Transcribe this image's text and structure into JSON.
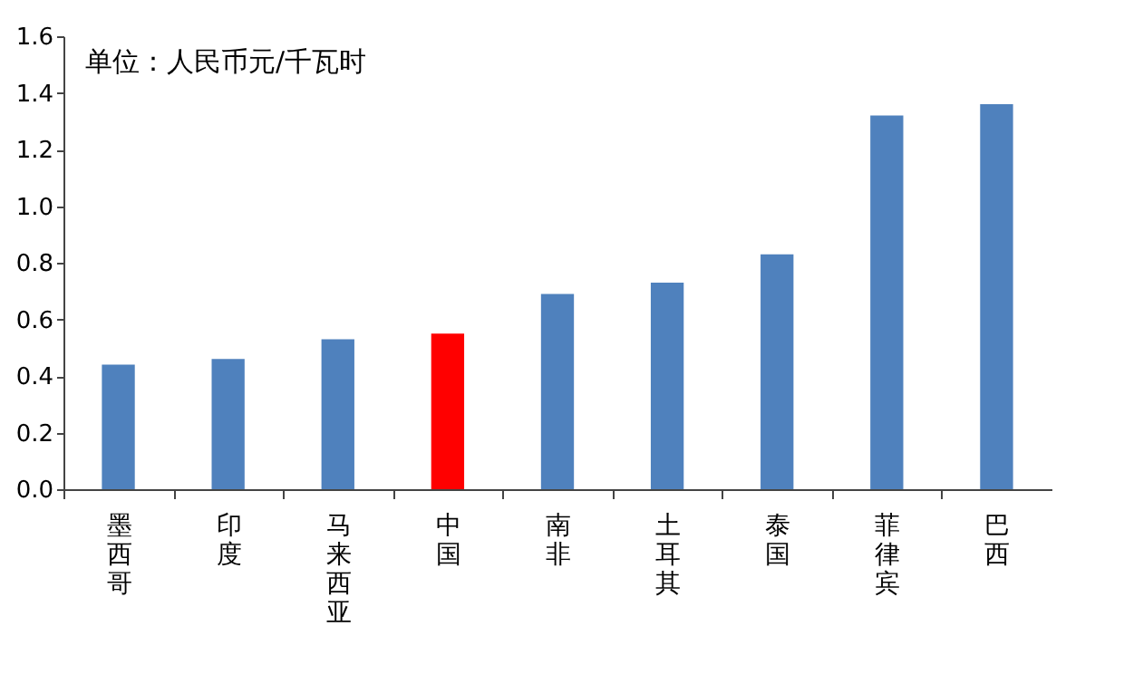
{
  "chart_data": {
    "type": "bar",
    "ylabel": "单位：人民币元/千瓦时",
    "categories": [
      "墨西哥",
      "印度",
      "马来西亚",
      "中国",
      "南非",
      "土耳其",
      "泰国",
      "菲律宾",
      "巴西"
    ],
    "values": [
      0.44,
      0.46,
      0.53,
      0.55,
      0.69,
      0.73,
      0.83,
      1.32,
      1.36
    ],
    "colors": [
      "#4f81bd",
      "#4f81bd",
      "#4f81bd",
      "#ff0000",
      "#4f81bd",
      "#4f81bd",
      "#4f81bd",
      "#4f81bd",
      "#4f81bd"
    ],
    "ylim": [
      0,
      1.6
    ],
    "yticks": [
      {
        "value": 0,
        "label": "0.0"
      },
      0.2,
      0.4,
      0.6,
      0.8,
      {
        "value": 1,
        "label": "1.0"
      },
      1.2,
      1.4,
      1.6
    ],
    "grid": false
  }
}
